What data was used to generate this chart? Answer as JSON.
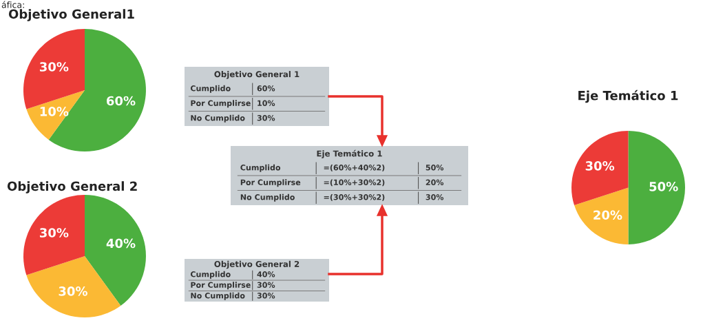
{
  "chart_data": [
    {
      "type": "pie",
      "title": "Objetivo General1",
      "annotations": [
        "áfica:"
      ],
      "categories": [
        null,
        null,
        null
      ],
      "values": [
        60,
        10,
        30
      ],
      "value_labels": [
        "60%",
        "10%",
        "30%"
      ],
      "colors": [
        "#4caf3f",
        "#fbb934",
        "#ec3b37"
      ]
    },
    {
      "type": "other",
      "title": "Objetivo General 1",
      "y_categories": [
        "Cumplido",
        "Por Cumplirse",
        "No Cumplido"
      ],
      "cell_labels": [
        [
          "60%"
        ],
        [
          "10%"
        ],
        [
          "30%"
        ]
      ]
    },
    {
      "type": "pie",
      "title": "Objetivo General 2",
      "categories": [
        null,
        null,
        null
      ],
      "values": [
        40,
        30,
        30
      ],
      "value_labels": [
        "40%",
        "30%",
        "30%"
      ],
      "colors": [
        "#4caf3f",
        "#fbb934",
        "#ec3b37"
      ]
    },
    {
      "type": "other",
      "title": "Objetivo General 2",
      "y_categories": [
        "Cumplido",
        "Por Cumplirse",
        "No Cumplido"
      ],
      "cell_labels": [
        [
          "40%"
        ],
        [
          "30%"
        ],
        [
          "30%"
        ]
      ]
    },
    {
      "type": "other",
      "title": "Eje Temático 1",
      "y_categories": [
        "Cumplido",
        "Por Cumplirse",
        "No Cumplido"
      ],
      "cell_labels": [
        [
          "=(60%+40%2)",
          "50%"
        ],
        [
          "=(10%+30%2)",
          "20%"
        ],
        [
          "=(30%+30%2)",
          "30%"
        ]
      ]
    },
    {
      "type": "pie",
      "title": "Eje Temático 1",
      "categories": [
        null,
        null,
        null
      ],
      "values": [
        50,
        20,
        30
      ],
      "value_labels": [
        "50%",
        "20%",
        "30%"
      ],
      "colors": [
        "#4caf3f",
        "#fbb934",
        "#ec3b37"
      ]
    }
  ]
}
